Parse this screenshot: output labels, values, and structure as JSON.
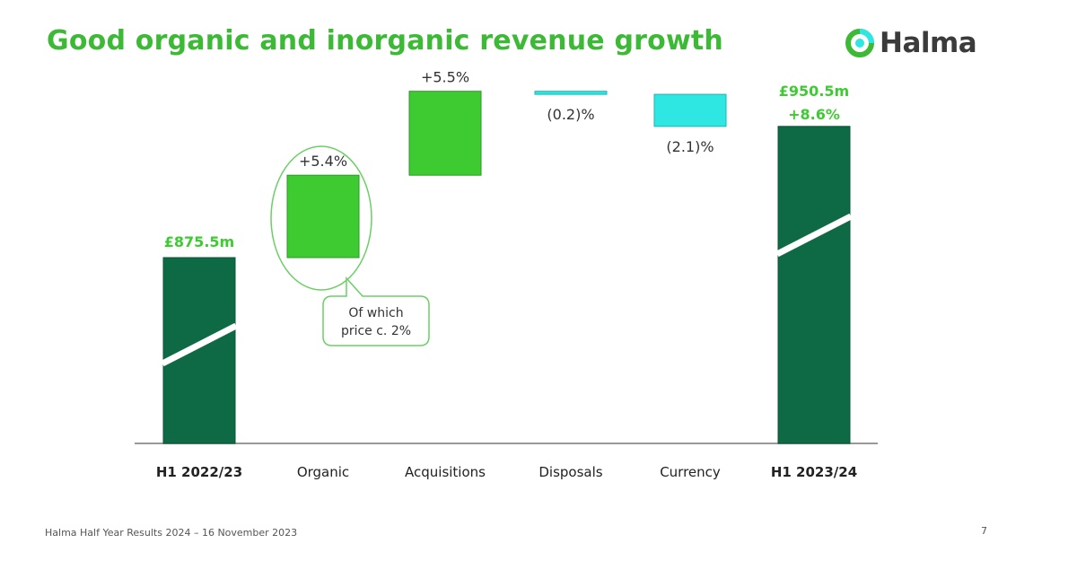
{
  "slide": {
    "title": "Good organic and inorganic revenue growth",
    "brand": "Halma",
    "footer": "Halma Half Year Results 2024 – 16 November 2023",
    "page_number": "7"
  },
  "colors": {
    "title": "#3cb935",
    "dark_green": "#0e6a45",
    "light_green": "#3ecb32",
    "cyan": "#2ee6e2",
    "axis": "#999999",
    "label_dark": "#333333"
  },
  "chart_data": {
    "type": "waterfall",
    "title": "Good organic and inorganic revenue growth",
    "categories": [
      "H1 2022/23",
      "Organic",
      "Acquisitions",
      "Disposals",
      "Currency",
      "H1 2023/24"
    ],
    "bars": [
      {
        "category": "H1 2022/23",
        "kind": "total",
        "value": 875.5,
        "value_label": "£875.5m",
        "change_label": ""
      },
      {
        "category": "Organic",
        "kind": "increase",
        "percent": 5.4,
        "value_label": "+5.4%"
      },
      {
        "category": "Acquisitions",
        "kind": "increase",
        "percent": 5.5,
        "value_label": "+5.5%"
      },
      {
        "category": "Disposals",
        "kind": "decrease",
        "percent": -0.2,
        "value_label": "(0.2)%"
      },
      {
        "category": "Currency",
        "kind": "decrease",
        "percent": -2.1,
        "value_label": "(2.1)%"
      },
      {
        "category": "H1 2023/24",
        "kind": "total",
        "value": 950.5,
        "value_label": "£950.5m",
        "change_label": "+8.6%"
      }
    ],
    "axis_break": true,
    "bold_categories": [
      "H1 2022/23",
      "H1 2023/24"
    ],
    "annotation": {
      "target": "Organic",
      "lines": [
        "Of which",
        "price c. 2%"
      ]
    }
  }
}
